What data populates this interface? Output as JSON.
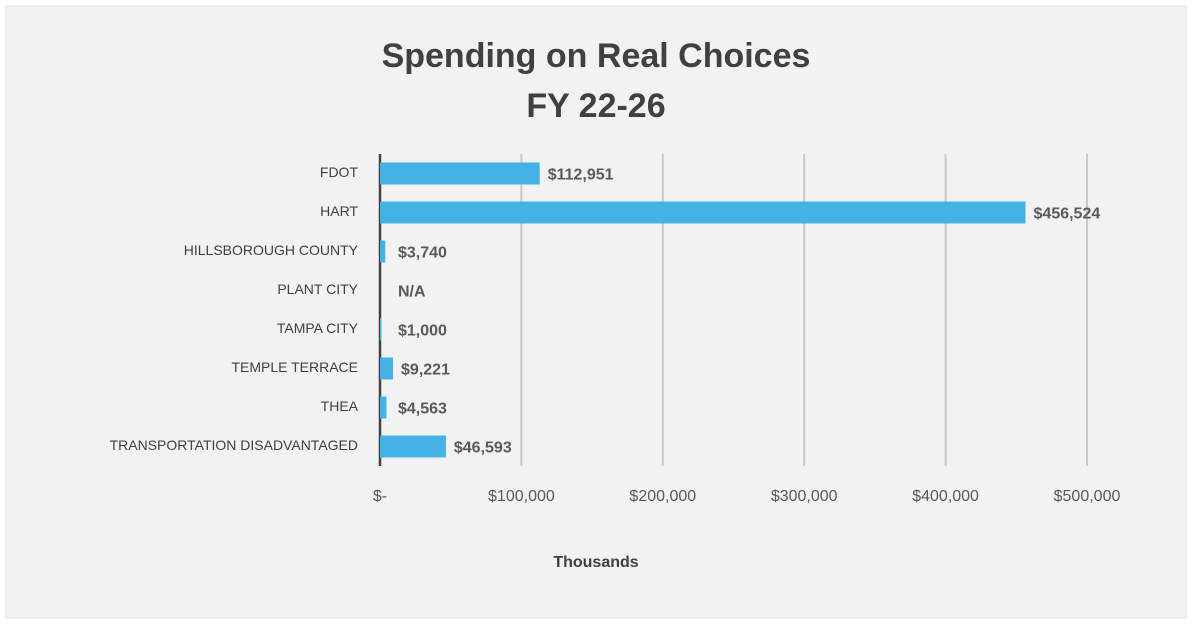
{
  "chart_data": {
    "type": "barh",
    "title": [
      "Spending on Real Choices",
      "FY 22-26"
    ],
    "categories": [
      "FDOT",
      "HART",
      "HILLSBOROUGH COUNTY",
      "PLANT CITY",
      "TAMPA CITY",
      "TEMPLE TERRACE",
      "THEA",
      "TRANSPORTATION DISADVANTAGED"
    ],
    "values": [
      112951,
      456524,
      3740,
      null,
      1000,
      9221,
      4563,
      46593
    ],
    "value_labels": [
      "$112,951",
      "$456,524",
      "$3,740",
      "N/A",
      "$1,000",
      "$9,221",
      "$4,563",
      "$46,593"
    ],
    "color": "#45b2e5",
    "xlim": [
      0,
      500000
    ],
    "xticks": [
      {
        "value": 0,
        "label": "$-"
      },
      {
        "value": 100000,
        "label": "$100,000"
      },
      {
        "value": 200000,
        "label": "$200,000"
      },
      {
        "value": 300000,
        "label": "$300,000"
      },
      {
        "value": 400000,
        "label": "$400,000"
      },
      {
        "value": 500000,
        "label": "$500,000"
      }
    ],
    "xlabel": "Thousands",
    "grid": true
  }
}
